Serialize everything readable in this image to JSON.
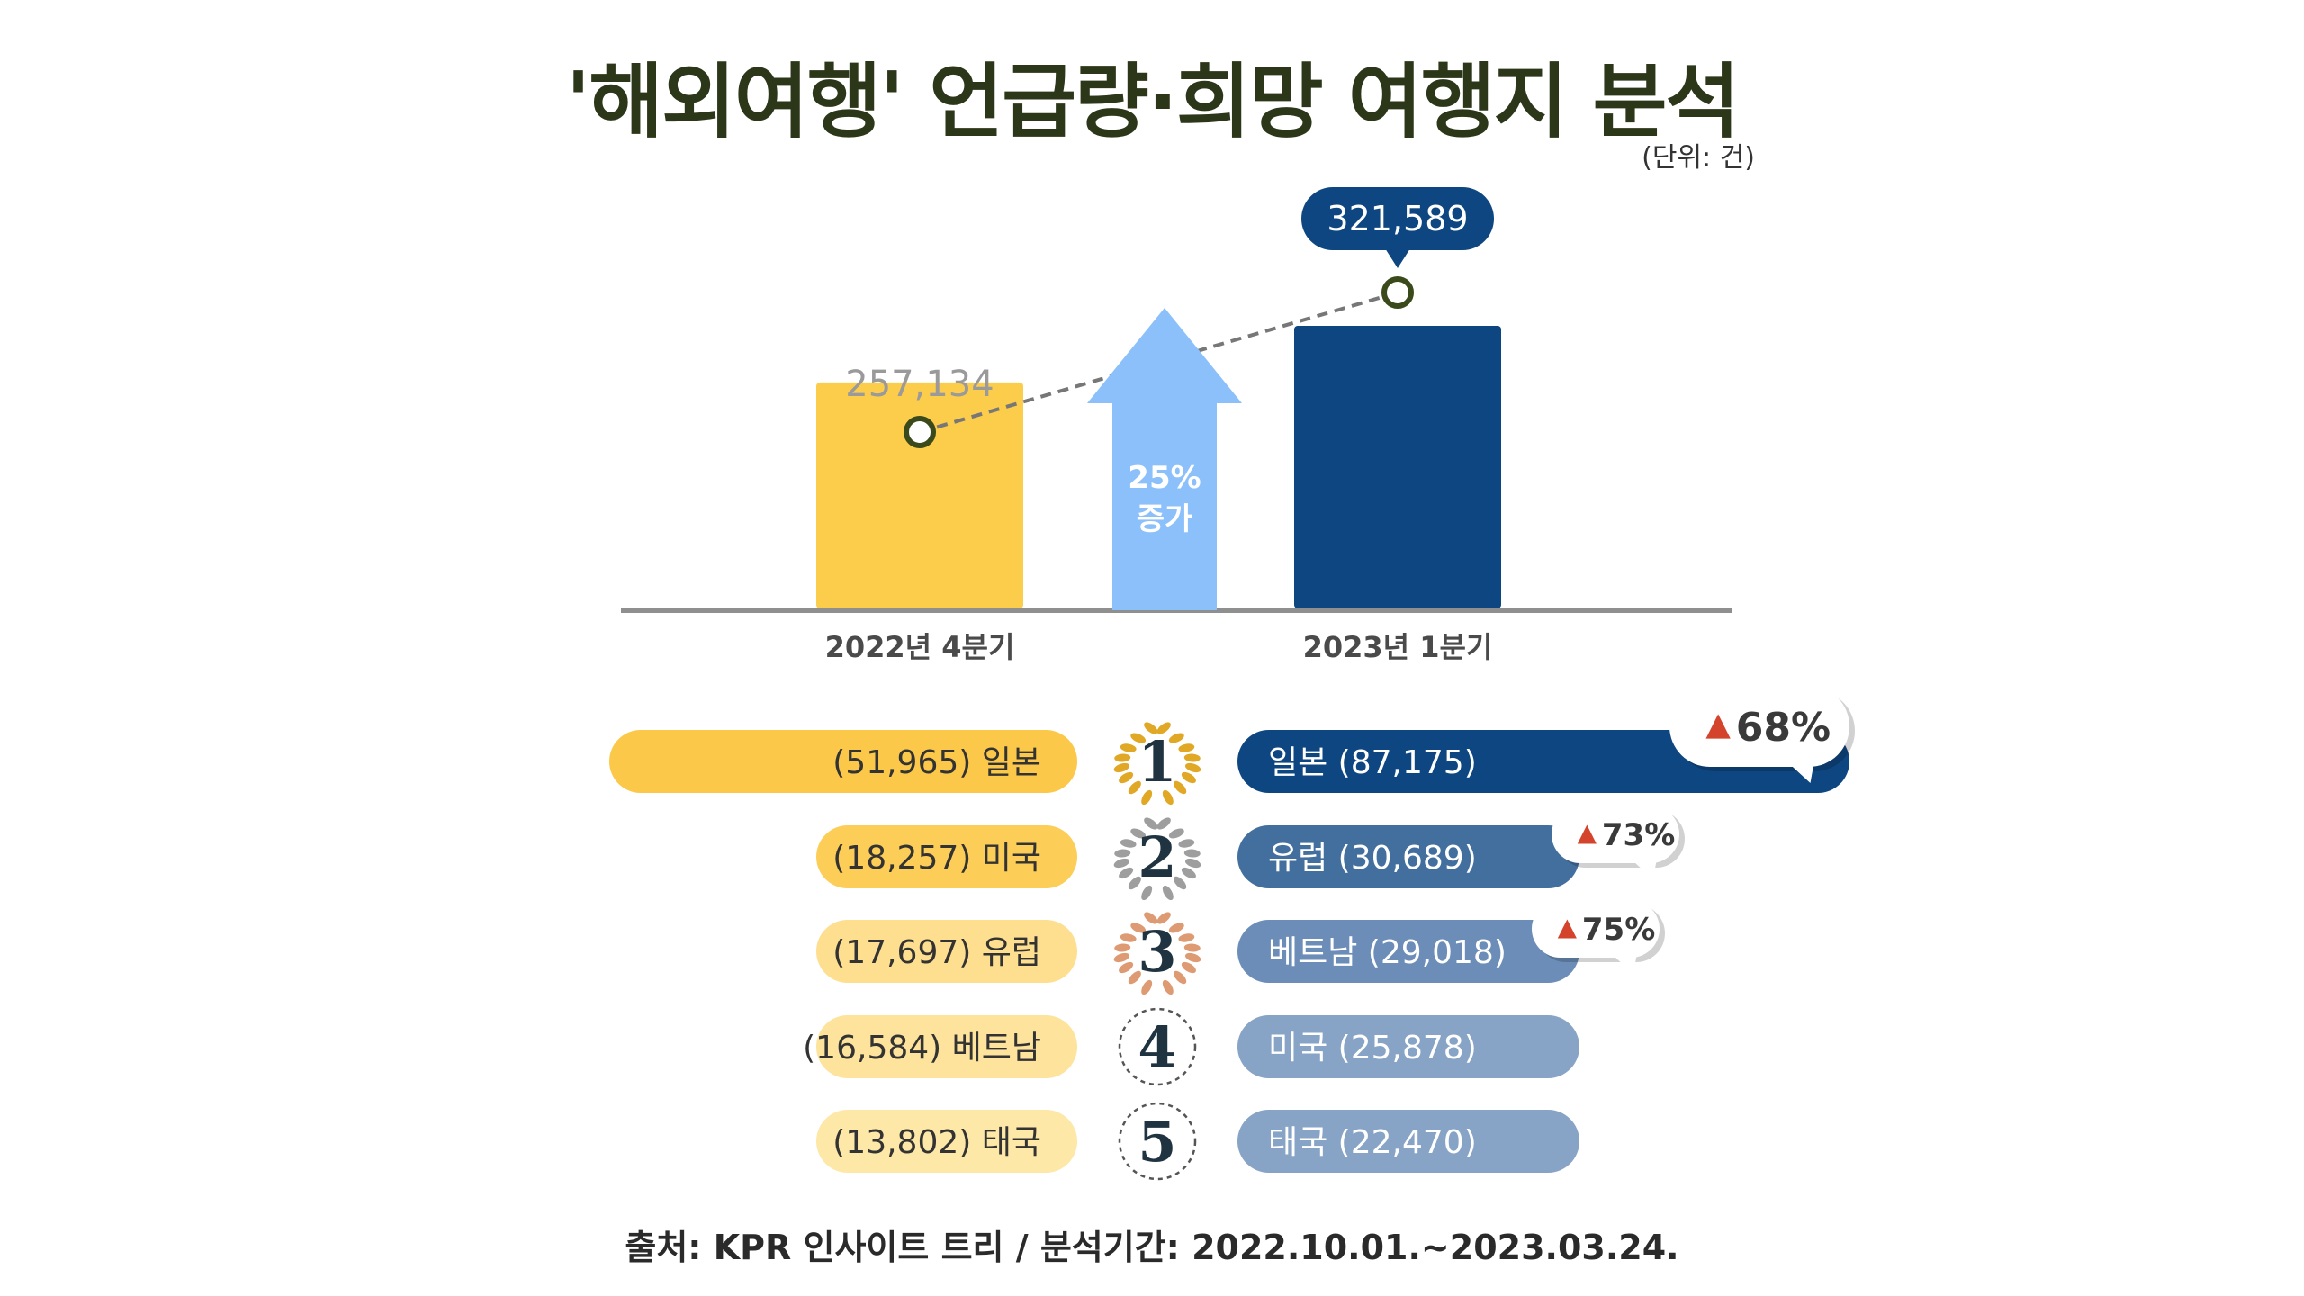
{
  "title": "'해외여행' 언급량·희망 여행지 분석",
  "unit": "(단위: 건)",
  "source": "출처: KPR 인사이트 트리 / 분석기간: 2022.10.01.~2023.03.24.",
  "colors": {
    "title": "#2c3618",
    "period1": "#fccc4b",
    "period2": "#0e4681",
    "arrow": "#8cc0fa",
    "increase": "#d4432b"
  },
  "chart_data": [
    {
      "type": "bar",
      "categories": [
        "2022년 4분기",
        "2023년 1분기"
      ],
      "values": [
        257134,
        321589
      ],
      "value_labels": [
        "257,134",
        "321,589"
      ],
      "ylim": [
        0,
        360000
      ],
      "annotation": {
        "lines": [
          "25%",
          "증가"
        ]
      }
    },
    {
      "type": "bar",
      "orientation": "horizontal",
      "ranks": [
        "1",
        "2",
        "3",
        "4",
        "5"
      ],
      "series": [
        {
          "period": "2022년 4분기",
          "labels": [
            "(51,965) 일본",
            "(18,257) 미국",
            "(17,697) 유럽",
            "(16,584) 베트남",
            "(13,802) 태국"
          ],
          "countries": [
            "일본",
            "미국",
            "유럽",
            "베트남",
            "태국"
          ],
          "values": [
            51965,
            18257,
            17697,
            16584,
            13802
          ]
        },
        {
          "period": "2023년 1분기",
          "labels": [
            "일본 (87,175)",
            "유럽 (30,689)",
            "베트남 (29,018)",
            "미국 (25,878)",
            "태국 (22,470)"
          ],
          "countries": [
            "일본",
            "유럽",
            "베트남",
            "미국",
            "태국"
          ],
          "values": [
            87175,
            30689,
            29018,
            25878,
            22470
          ]
        }
      ],
      "badges": [
        {
          "rank": 1,
          "text": "68%"
        },
        {
          "rank": 2,
          "text": "73%"
        },
        {
          "rank": 3,
          "text": "75%"
        }
      ]
    }
  ]
}
